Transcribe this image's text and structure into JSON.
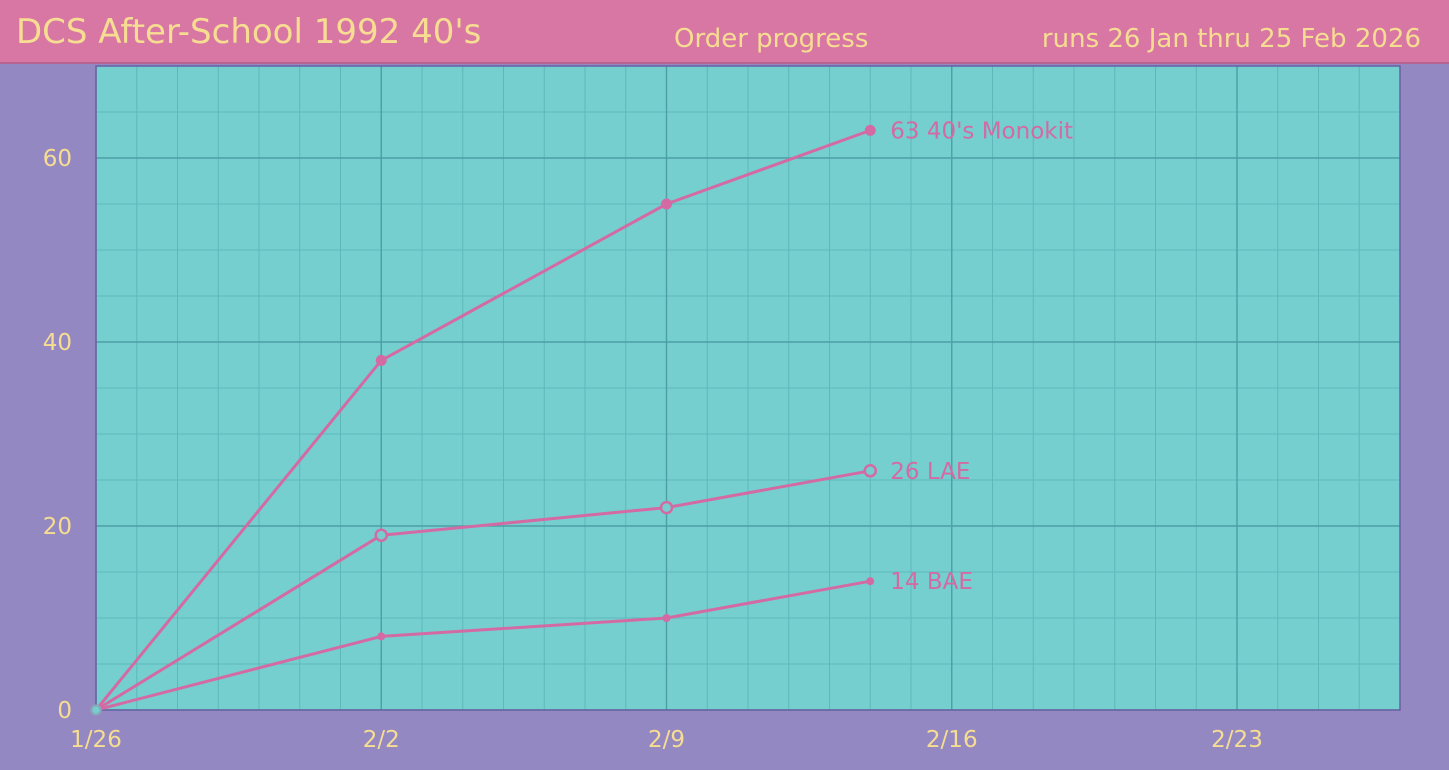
{
  "header": {
    "title": "DCS After-School 1992 40's",
    "subtitle": "Order progress",
    "date_range": "runs 26 Jan thru 25 Feb 2026"
  },
  "colors": {
    "header_bg": "#d877a4",
    "page_bg": "#9488c2",
    "plot_bg": "#75cfcf",
    "line": "#d46aa3",
    "text": "#f6dd92"
  },
  "chart_data": {
    "type": "line",
    "title": "Order progress",
    "x_axis": {
      "type": "date",
      "min": "2026-01-26",
      "max": "2026-02-27",
      "ticks": [
        "2026-01-26",
        "2026-02-02",
        "2026-02-09",
        "2026-02-16",
        "2026-02-23"
      ],
      "tick_labels": [
        "1/26",
        "2/2",
        "2/9",
        "2/16",
        "2/23"
      ]
    },
    "y_axis": {
      "min": 0,
      "max": 70,
      "ticks": [
        0,
        20,
        40,
        60
      ],
      "tick_labels": [
        "0",
        "20",
        "40",
        "60"
      ]
    },
    "grid": true,
    "series": [
      {
        "name": "40's Monokit",
        "marker": "filled-large",
        "x": [
          "2026-01-26",
          "2026-02-02",
          "2026-02-09",
          "2026-02-14"
        ],
        "y": [
          0,
          38,
          55,
          63
        ],
        "end_label": "63  40's Monokit"
      },
      {
        "name": "LAE",
        "marker": "hollow",
        "x": [
          "2026-01-26",
          "2026-02-02",
          "2026-02-09",
          "2026-02-14"
        ],
        "y": [
          0,
          19,
          22,
          26
        ],
        "end_label": "26  LAE"
      },
      {
        "name": "BAE",
        "marker": "filled-small",
        "x": [
          "2026-01-26",
          "2026-02-02",
          "2026-02-09",
          "2026-02-14"
        ],
        "y": [
          0,
          8,
          10,
          14
        ],
        "end_label": "14  BAE"
      }
    ]
  }
}
